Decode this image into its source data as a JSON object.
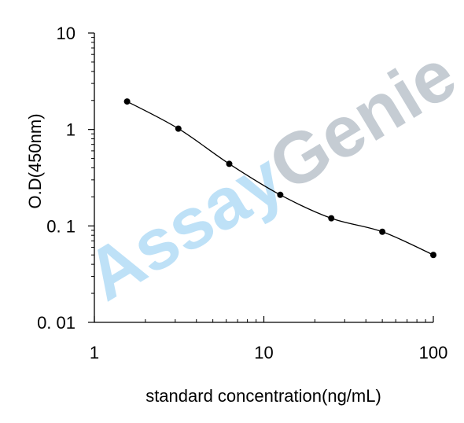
{
  "watermark": {
    "part1": "Assay",
    "part2": "Genie",
    "color1": "#a9d8f5",
    "color2": "#b7c0c9"
  },
  "chart_data": {
    "type": "line",
    "x_scale": "log",
    "y_scale": "log",
    "xlabel": "standard concentration(ng/mL)",
    "ylabel": "O.D(450nm)",
    "xlim": [
      1,
      100
    ],
    "ylim": [
      0.01,
      10
    ],
    "x_ticks": [
      {
        "value": 1,
        "label": "1"
      },
      {
        "value": 10,
        "label": "10"
      },
      {
        "value": 100,
        "label": "100"
      }
    ],
    "y_ticks": [
      {
        "value": 10,
        "label": "10"
      },
      {
        "value": 1,
        "label": "1"
      },
      {
        "value": 0.1,
        "label": "0. 1"
      },
      {
        "value": 0.01,
        "label": "0. 01"
      }
    ],
    "grid": false,
    "series": [
      {
        "x": [
          1.56,
          3.13,
          6.25,
          12.5,
          25,
          50,
          100
        ],
        "y": [
          1.95,
          1.02,
          0.44,
          0.21,
          0.12,
          0.087,
          0.05
        ],
        "color": "#000000",
        "marker": "circle"
      }
    ]
  }
}
